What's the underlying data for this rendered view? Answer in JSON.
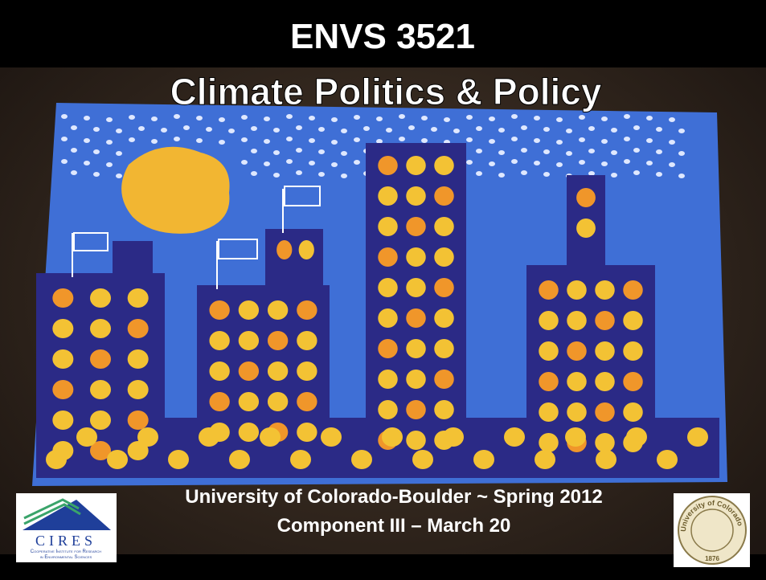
{
  "title": {
    "line1": "ENVS 3521",
    "line2": "Climate Politics & Policy"
  },
  "subtitle": {
    "line1": "University of Colorado-Boulder ~ Spring 2012",
    "line2": "Component III – March 20"
  },
  "logos": {
    "cires": {
      "name": "CIRES",
      "caption": [
        "Cooperative Institute for Research",
        "in Environmental Sciences"
      ]
    },
    "seal": {
      "text": "University of Colorado",
      "year": "1876"
    }
  }
}
